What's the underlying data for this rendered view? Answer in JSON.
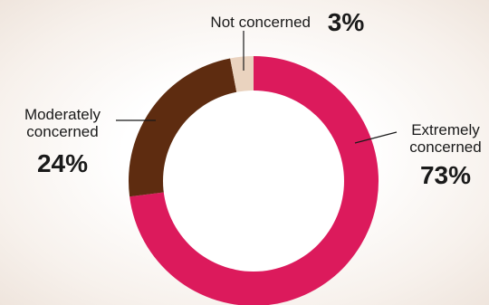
{
  "chart_data": {
    "type": "pie",
    "donut": true,
    "categories": [
      "Extremely concerned",
      "Moderately concerned",
      "Not concerned"
    ],
    "values": [
      73,
      24,
      3
    ],
    "value_labels": [
      "73%",
      "24%",
      "3%"
    ],
    "colors": [
      "#dc1a5c",
      "#5e2c10",
      "#ead3bf"
    ],
    "label_lines": {
      "extremely": [
        "Extremely",
        "concerned"
      ],
      "moderately": [
        "Moderately",
        "concerned"
      ],
      "not": [
        "Not concerned"
      ]
    },
    "legend": "none",
    "grid": false
  }
}
